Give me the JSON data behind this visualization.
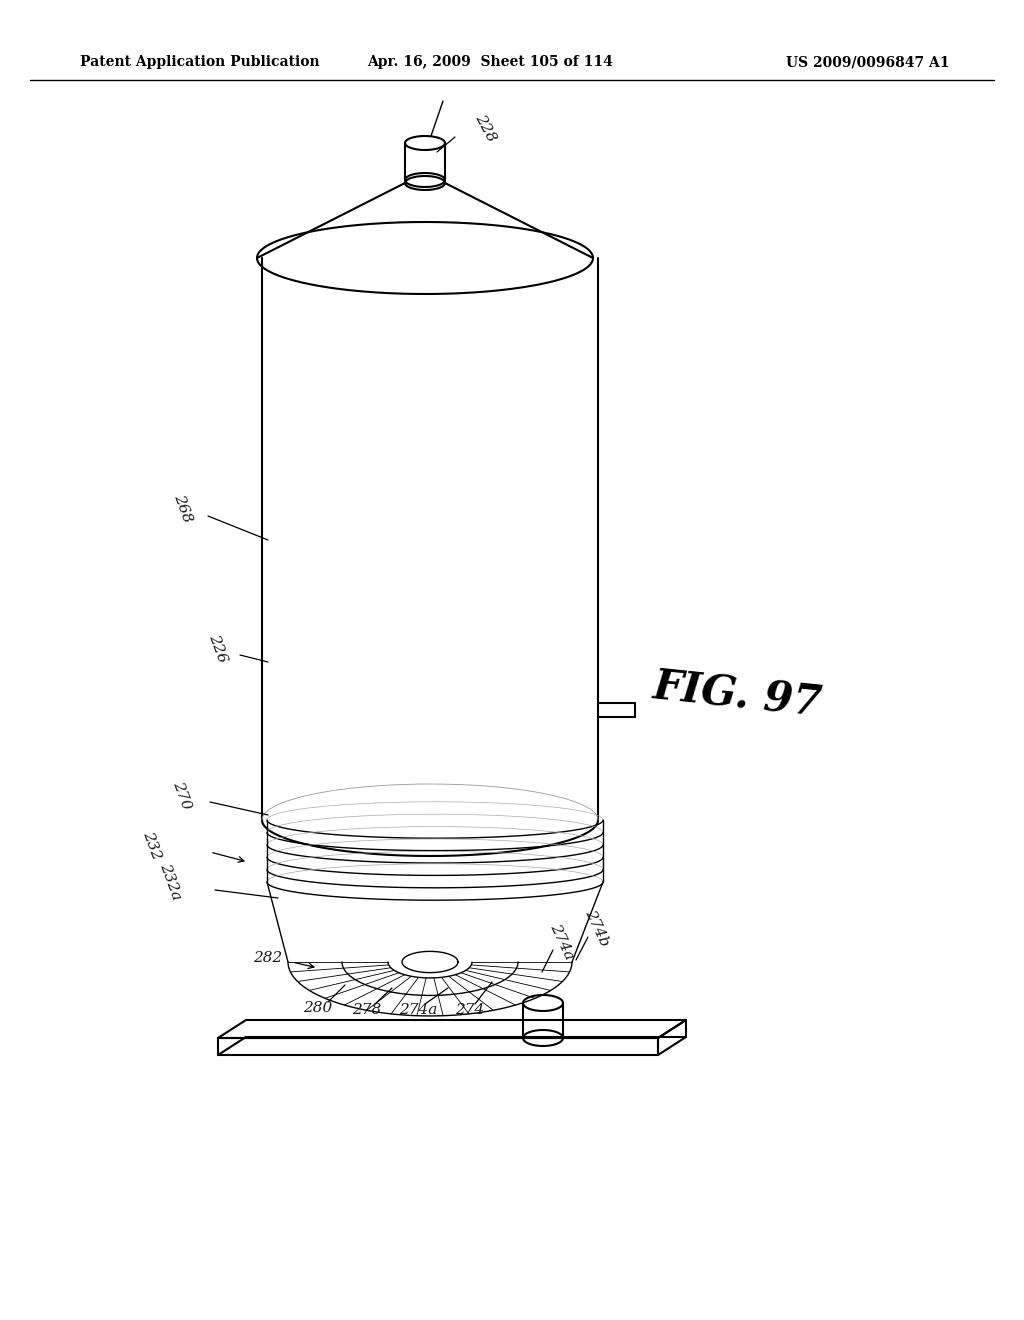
{
  "header_left": "Patent Application Publication",
  "header_mid": "Apr. 16, 2009  Sheet 105 of 114",
  "header_right": "US 2009/0096847 A1",
  "fig_label": "FIG. 97",
  "bg_color": "#ffffff",
  "line_color": "#000000",
  "label_color": "#1a1a1a"
}
